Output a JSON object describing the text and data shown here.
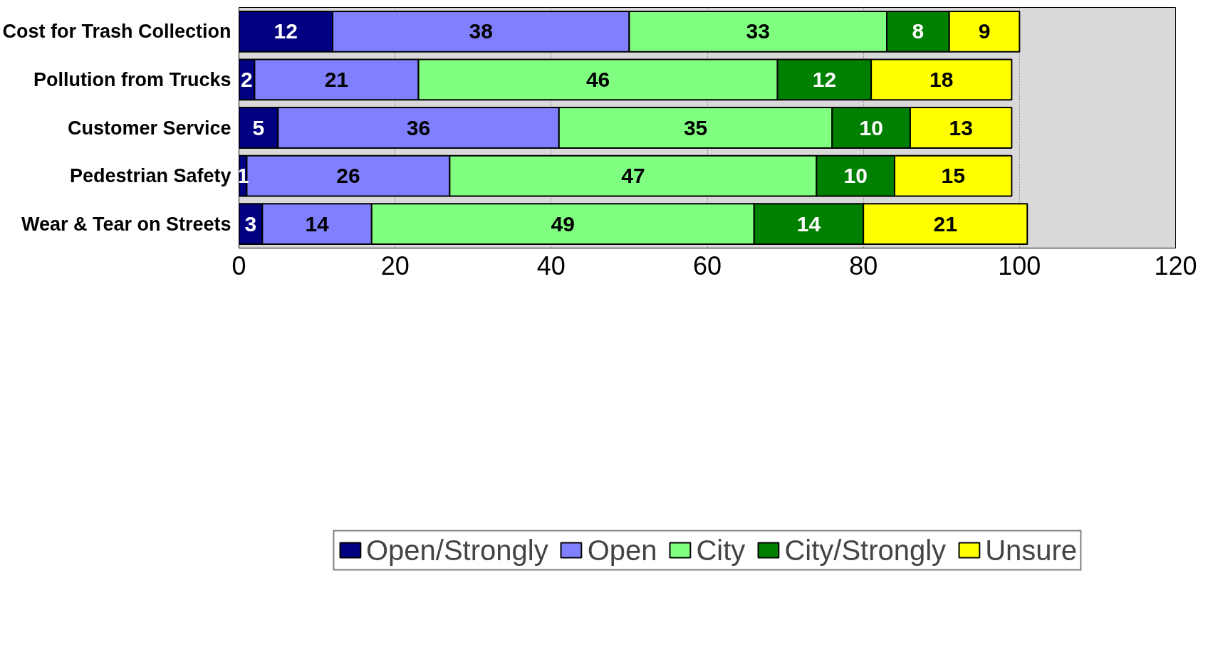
{
  "chart_data": {
    "type": "bar",
    "orientation": "horizontal",
    "stacked": true,
    "categories": [
      "Cost for Trash Collection",
      "Pollution from Trucks",
      "Customer Service",
      "Pedestrian Safety",
      "Wear & Tear on Streets"
    ],
    "series": [
      {
        "name": "Open/Strongly",
        "color": "#000080",
        "values": [
          12,
          2,
          5,
          1,
          3
        ]
      },
      {
        "name": "Open",
        "color": "#8080ff",
        "values": [
          38,
          21,
          36,
          26,
          14
        ]
      },
      {
        "name": "City",
        "color": "#80ff80",
        "values": [
          33,
          46,
          35,
          47,
          49
        ]
      },
      {
        "name": "City/Strongly",
        "color": "#008000",
        "values": [
          8,
          12,
          10,
          10,
          14
        ]
      },
      {
        "name": "Unsure",
        "color": "#ffff00",
        "values": [
          9,
          18,
          13,
          15,
          21
        ]
      }
    ],
    "xlim": [
      0,
      120
    ],
    "xticks": [
      0,
      20,
      40,
      60,
      80,
      100,
      120
    ],
    "grid": "x",
    "legend": "bottom",
    "data_labels": true
  }
}
